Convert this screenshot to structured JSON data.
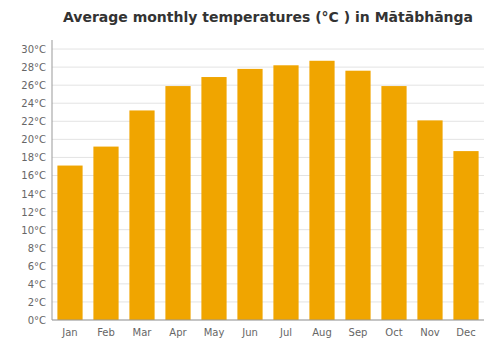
{
  "chart_data": {
    "type": "bar",
    "title": "Average monthly temperatures (°C ) in Mātābhānga",
    "categories": [
      "Jan",
      "Feb",
      "Mar",
      "Apr",
      "May",
      "Jun",
      "Jul",
      "Aug",
      "Sep",
      "Oct",
      "Nov",
      "Dec"
    ],
    "values": [
      17.1,
      19.2,
      23.2,
      25.9,
      26.9,
      27.8,
      28.2,
      28.7,
      27.6,
      25.9,
      22.1,
      18.7
    ],
    "color": "#F0A500",
    "ylim": [
      0,
      31
    ],
    "yticks": [
      {
        "value": 0,
        "label": "0°C"
      },
      {
        "value": 2,
        "label": "2°C"
      },
      {
        "value": 4,
        "label": "4°C"
      },
      {
        "value": 6,
        "label": "6°C"
      },
      {
        "value": 8,
        "label": "8°C"
      },
      {
        "value": 10,
        "label": "10°C"
      },
      {
        "value": 12,
        "label": "12°C"
      },
      {
        "value": 14,
        "label": "14°C"
      },
      {
        "value": 16,
        "label": "16°C"
      },
      {
        "value": 18,
        "label": "18°C"
      },
      {
        "value": 20,
        "label": "20°C"
      },
      {
        "value": 22,
        "label": "22°C"
      },
      {
        "value": 24,
        "label": "24°C"
      },
      {
        "value": 26,
        "label": "26°C"
      },
      {
        "value": 28,
        "label": "28°C"
      },
      {
        "value": 30,
        "label": "30°C"
      }
    ],
    "grid": true
  }
}
